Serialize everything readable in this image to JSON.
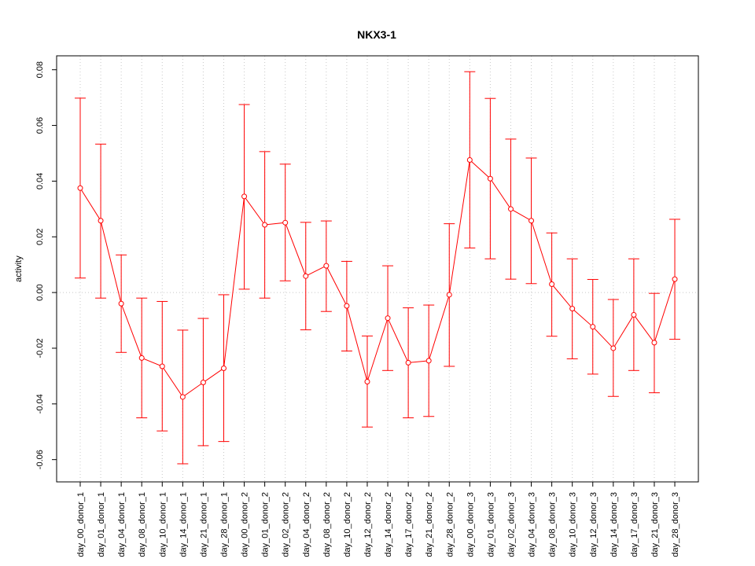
{
  "chart_data": {
    "type": "line",
    "title": "NKX3-1",
    "xlabel": "",
    "ylabel": "activity",
    "ylim": [
      -0.068,
      0.085
    ],
    "y_ticks": [
      -0.06,
      -0.04,
      -0.02,
      0.0,
      0.02,
      0.04,
      0.06,
      0.08
    ],
    "y_tick_labels": [
      "-0.06",
      "-0.04",
      "-0.02",
      "0.00",
      "0.02",
      "0.04",
      "0.06",
      "0.08"
    ],
    "grid": "dotted",
    "color": "#ff0000",
    "categories": [
      "day_00_donor_1",
      "day_01_donor_1",
      "day_04_donor_1",
      "day_08_donor_1",
      "day_10_donor_1",
      "day_14_donor_1",
      "day_21_donor_1",
      "day_28_donor_1",
      "day_00_donor_2",
      "day_01_donor_2",
      "day_02_donor_2",
      "day_04_donor_2",
      "day_08_donor_2",
      "day_10_donor_2",
      "day_12_donor_2",
      "day_14_donor_2",
      "day_17_donor_2",
      "day_21_donor_2",
      "day_28_donor_2",
      "day_00_donor_3",
      "day_01_donor_3",
      "day_02_donor_3",
      "day_04_donor_3",
      "day_08_donor_3",
      "day_10_donor_3",
      "day_12_donor_3",
      "day_14_donor_3",
      "day_17_donor_3",
      "day_21_donor_3",
      "day_28_donor_3"
    ],
    "values": [
      0.0375,
      0.0258,
      -0.004,
      -0.0235,
      -0.0265,
      -0.0375,
      -0.0323,
      -0.0272,
      0.0345,
      0.0243,
      0.0251,
      0.0059,
      0.0096,
      -0.0048,
      -0.032,
      -0.0092,
      -0.0252,
      -0.0245,
      -0.0008,
      0.0476,
      0.0409,
      0.03,
      0.0258,
      0.003,
      -0.0058,
      -0.0123,
      -0.02,
      -0.008,
      -0.018,
      0.0048
    ],
    "upper": [
      0.0698,
      0.0533,
      0.0135,
      -0.002,
      -0.0032,
      -0.0135,
      -0.0093,
      -0.0008,
      0.0675,
      0.0506,
      0.0461,
      0.0252,
      0.0257,
      0.0112,
      -0.0156,
      0.0096,
      -0.0055,
      -0.0045,
      0.0247,
      0.0793,
      0.0697,
      0.0551,
      0.0483,
      0.0214,
      0.0121,
      0.0047,
      -0.0025,
      0.0121,
      -0.0003,
      0.0263
    ],
    "lower": [
      0.0052,
      -0.002,
      -0.0215,
      -0.045,
      -0.0497,
      -0.0615,
      -0.055,
      -0.0535,
      0.0012,
      -0.002,
      0.0042,
      -0.0134,
      -0.0068,
      -0.021,
      -0.0483,
      -0.028,
      -0.045,
      -0.0445,
      -0.0265,
      0.016,
      0.0121,
      0.0048,
      0.0032,
      -0.0157,
      -0.0238,
      -0.0293,
      -0.0373,
      -0.028,
      -0.036,
      -0.0168
    ]
  }
}
